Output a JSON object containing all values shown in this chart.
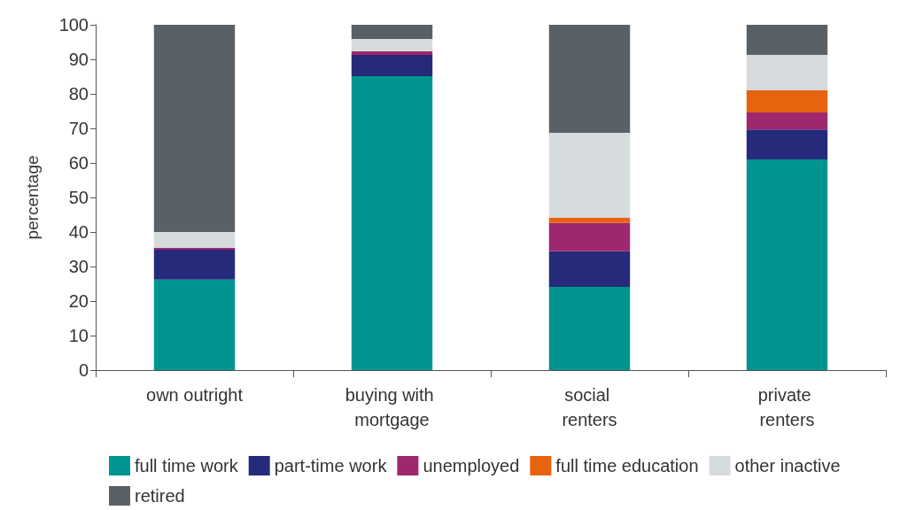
{
  "chart_data": {
    "type": "bar",
    "stacked": true,
    "ylabel": "percentage",
    "categories": [
      "own outright",
      "buying with mortgage",
      "social renters",
      "private renters"
    ],
    "series": [
      {
        "name": "full time work",
        "color": "#009490",
        "values": [
          26.2,
          85.1,
          24.1,
          61.0
        ]
      },
      {
        "name": "part-time work",
        "color": "#252a7a",
        "values": [
          8.7,
          6.2,
          10.3,
          8.7
        ]
      },
      {
        "name": "unemployed",
        "color": "#9e276d",
        "values": [
          0.5,
          1.0,
          8.2,
          4.9
        ]
      },
      {
        "name": "full time education",
        "color": "#e8630e",
        "values": [
          0,
          0,
          1.5,
          6.4
        ]
      },
      {
        "name": "other inactive",
        "color": "#d6dbdd",
        "values": [
          4.6,
          3.6,
          24.6,
          10.3
        ]
      },
      {
        "name": "retired",
        "color": "#5a6166",
        "values": [
          60.0,
          4.1,
          31.3,
          8.7
        ]
      }
    ],
    "ylim": [
      0,
      100
    ],
    "yticks": [
      0,
      10,
      20,
      30,
      40,
      50,
      60,
      70,
      80,
      90,
      100
    ],
    "grid": false,
    "legend": "bottom"
  }
}
